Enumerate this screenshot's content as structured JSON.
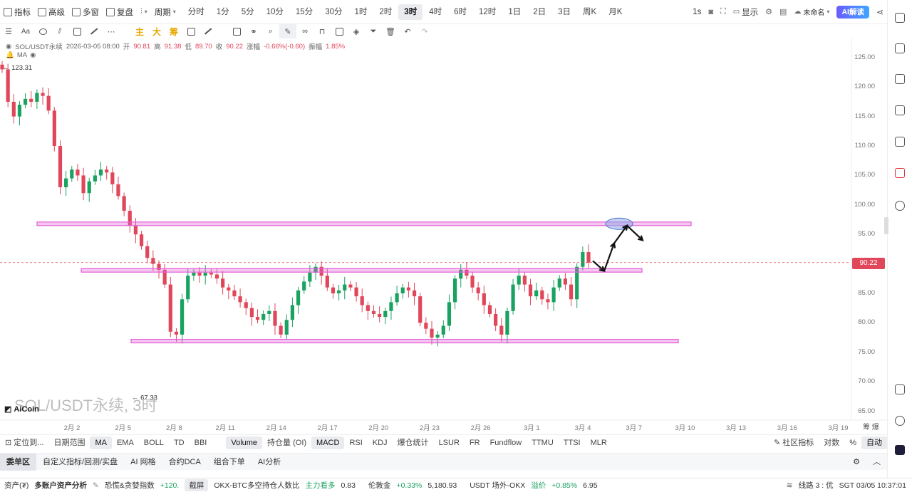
{
  "topbar": {
    "left_items": [
      {
        "label": "指标",
        "icon": "indicator-icon"
      },
      {
        "label": "高级",
        "icon": "advanced-icon"
      },
      {
        "label": "多窗",
        "icon": "multi-window-icon"
      },
      {
        "label": "复盘",
        "icon": "replay-icon"
      }
    ],
    "chart_type_icon": "candle-type-icon",
    "period_label": "周期",
    "timeframes": [
      "分时",
      "1分",
      "5分",
      "10分",
      "15分",
      "30分",
      "1时",
      "2时",
      "3时",
      "4时",
      "6时",
      "12时",
      "1日",
      "2日",
      "3日",
      "周K",
      "月K"
    ],
    "active_timeframe": "3时",
    "speed_label": "1s",
    "display_label": "显示",
    "layout_name": "未命名",
    "ai_label": "AI解读"
  },
  "drawbar": {
    "labels": [
      "Aa",
      "主",
      "大",
      "筹"
    ]
  },
  "info": {
    "symbol": "SOL/USDT永续",
    "datetime": "2026-03-05 08:00",
    "open_label": "开",
    "open": "90.81",
    "high_label": "高",
    "high": "91.38",
    "low_label": "低",
    "low": "89.70",
    "close_label": "收",
    "close": "90.22",
    "change_label": "涨幅",
    "change": "-0.66%(-0.60)",
    "amp_label": "振幅",
    "amp": "1.85%",
    "ma_label": "MA"
  },
  "chart_data": {
    "type": "candlestick",
    "symbol": "SOL/USDT永续",
    "interval": "3时",
    "watermark": "SOL/USDT永续, 3时",
    "logo": "AiCoin",
    "y_ticks": [
      125,
      120,
      115,
      110,
      105,
      100,
      95,
      90,
      85,
      80,
      75,
      70,
      65
    ],
    "y_tick_labels": [
      "125.00",
      "120.00",
      "115.00",
      "110.00",
      "105.00",
      "100.00",
      "95.00",
      "90.00",
      "85.00",
      "80.00",
      "75.00",
      "70.00",
      "65.00"
    ],
    "ylim": [
      63.5,
      128
    ],
    "x_tick_labels": [
      "2月 2",
      "2月 5",
      "2月 8",
      "2月 11",
      "2月 14",
      "2月 17",
      "2月 20",
      "2月 23",
      "2月 26",
      "3月 1",
      "3月 4",
      "3月 7",
      "3月 10",
      "3月 13",
      "3月 16",
      "3月 19"
    ],
    "current_price": "90.22",
    "high_marker": "123.31",
    "low_marker": "67.33",
    "closes": [
      123.0,
      117.5,
      115.0,
      117.0,
      118.0,
      117.5,
      119.0,
      118.5,
      116.0,
      110.0,
      103.0,
      104.5,
      106.0,
      105.0,
      102.0,
      104.0,
      105.0,
      106.0,
      105.5,
      103.5,
      101.5,
      99.0,
      96.5,
      95.0,
      93.0,
      91.0,
      90.0,
      89.0,
      86.5,
      78.5,
      78.0,
      84.0,
      88.0,
      88.5,
      88.0,
      88.5,
      88.2,
      87.5,
      86.0,
      85.5,
      84.5,
      83.5,
      82.5,
      81.0,
      80.5,
      81.5,
      82.0,
      79.5,
      78.0,
      80.5,
      83.0,
      85.5,
      87.0,
      88.5,
      89.5,
      88.0,
      86.0,
      85.0,
      85.5,
      86.5,
      86.0,
      84.5,
      83.0,
      82.0,
      81.5,
      81.0,
      82.0,
      83.5,
      85.0,
      86.0,
      85.5,
      84.5,
      80.0,
      79.0,
      77.5,
      78.0,
      79.5,
      83.5,
      87.5,
      89.0,
      88.0,
      86.0,
      85.0,
      83.0,
      81.5,
      79.5,
      78.0,
      82.0,
      86.5,
      88.0,
      86.5,
      84.5,
      85.5,
      84.0,
      83.5,
      86.0,
      87.5,
      86.5,
      84.0,
      89.5,
      92.0,
      90.22
    ],
    "annotations": [
      {
        "type": "horizontal-band",
        "price": 96.8,
        "color": "#e35fd6"
      },
      {
        "type": "horizontal-band",
        "price": 88.9,
        "color": "#e35fd6"
      },
      {
        "type": "horizontal-band",
        "price": 76.9,
        "color": "#e35fd6"
      },
      {
        "type": "ellipse",
        "price": 96.8,
        "color": "#8fa9e8"
      },
      {
        "type": "arrow-path",
        "prices": [
          90.5,
          88.8,
          93.5,
          96.5,
          94.0
        ]
      }
    ]
  },
  "indicators": {
    "left": [
      "定位到...",
      "日期范围"
    ],
    "main": [
      "MA",
      "EMA",
      "BOLL",
      "TD",
      "BBI"
    ],
    "main_active": "MA",
    "sub": [
      "Volume",
      "持仓量 (OI)",
      "MACD",
      "RSI",
      "KDJ",
      "爆仓统计",
      "LSUR",
      "FR",
      "Fundflow",
      "TTMU",
      "TTSI",
      "MLR"
    ],
    "sub_active": [
      "Volume",
      "MACD"
    ],
    "right": [
      "社区指标",
      "对数",
      "%",
      "自动"
    ]
  },
  "tabs": {
    "items": [
      "委单区",
      "自定义指标/回测/实盘",
      "AI 网格",
      "合约DCA",
      "组合下单",
      "AI分析"
    ],
    "active": "委单区"
  },
  "statusbar": {
    "assets": "资产(₮)",
    "multi": "多账户资产分析",
    "fear_label": "恐慌&贪婪指数",
    "fear_value": "+120.",
    "screenshot": "截屏",
    "okx_label": "OKX-BTC多空持仓人数比",
    "okx_tag": "主力看多",
    "okx_value": "0.83",
    "gold_label": "伦敦金",
    "gold_change": "+0.33%",
    "gold_value": "5,180.93",
    "usdt_label": "USDT 场外-OKX",
    "usdt_tag": "溢价",
    "usdt_change": "+0.85%",
    "usdt_value": "6.95",
    "line_label": "线路 3 : 优",
    "time": "SGT 03/05 10:37:01"
  },
  "colors": {
    "up": "#1aa260",
    "down": "#e0475a",
    "band": "#e35fd6"
  }
}
